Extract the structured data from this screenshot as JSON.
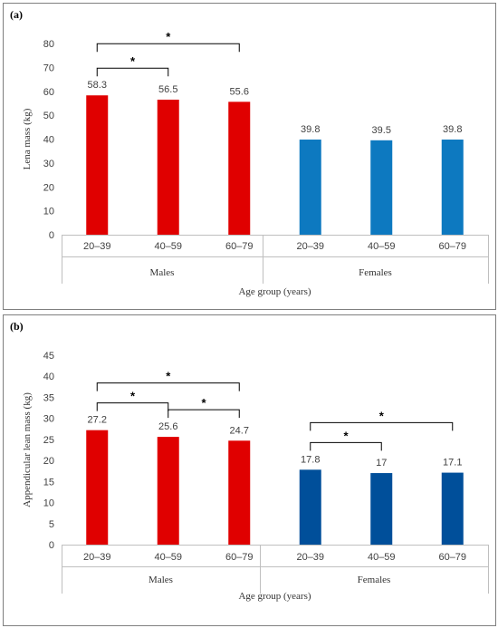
{
  "figure": {
    "panels": [
      {
        "label": "(a)"
      },
      {
        "label": "(b)"
      }
    ]
  },
  "colors": {
    "males_a": "#e00000",
    "females_a": "#0d79c0",
    "males_b": "#e00000",
    "females_b": "#004f9a"
  },
  "chart_data": [
    {
      "type": "bar",
      "ylabel": "Lena mass (kg)",
      "xlabel": "Age group (years)",
      "ylim": [
        0,
        80
      ],
      "yticks": [
        0,
        10,
        20,
        30,
        40,
        50,
        60,
        70,
        80
      ],
      "grid": false,
      "groups": [
        "Males",
        "Females"
      ],
      "categories": [
        "20–39",
        "40–59",
        "60–79",
        "20–39",
        "40–59",
        "60–79"
      ],
      "values": [
        58.3,
        56.5,
        55.6,
        39.8,
        39.5,
        39.8
      ],
      "value_labels": [
        "58.3",
        "56.5",
        "55.6",
        "39.8",
        "39.5",
        "39.8"
      ],
      "bar_group": [
        0,
        0,
        0,
        1,
        1,
        1
      ],
      "significance": [
        {
          "from": 0,
          "to": 2,
          "label": "*"
        },
        {
          "from": 0,
          "to": 1,
          "label": "*"
        }
      ]
    },
    {
      "type": "bar",
      "ylabel": "Appendicular lean mass (kg)",
      "xlabel": "Age group (years)",
      "ylim": [
        0,
        45
      ],
      "yticks": [
        0,
        5,
        10,
        15,
        20,
        25,
        30,
        35,
        40,
        45
      ],
      "grid": false,
      "groups": [
        "Males",
        "Females"
      ],
      "categories": [
        "20–39",
        "40–59",
        "60–79",
        "20–39",
        "40–59",
        "60–79"
      ],
      "values": [
        27.2,
        25.6,
        24.7,
        17.8,
        17,
        17.1
      ],
      "value_labels": [
        "27.2",
        "25.6",
        "24.7",
        "17.8",
        "17",
        "17.1"
      ],
      "bar_group": [
        0,
        0,
        0,
        1,
        1,
        1
      ],
      "significance": [
        {
          "from": 0,
          "to": 2,
          "label": "*"
        },
        {
          "from": 1,
          "to": 2,
          "label": "*"
        },
        {
          "from": 0,
          "to": 1,
          "label": "*"
        },
        {
          "from": 3,
          "to": 5,
          "label": "*"
        },
        {
          "from": 3,
          "to": 4,
          "label": "*"
        }
      ]
    }
  ]
}
